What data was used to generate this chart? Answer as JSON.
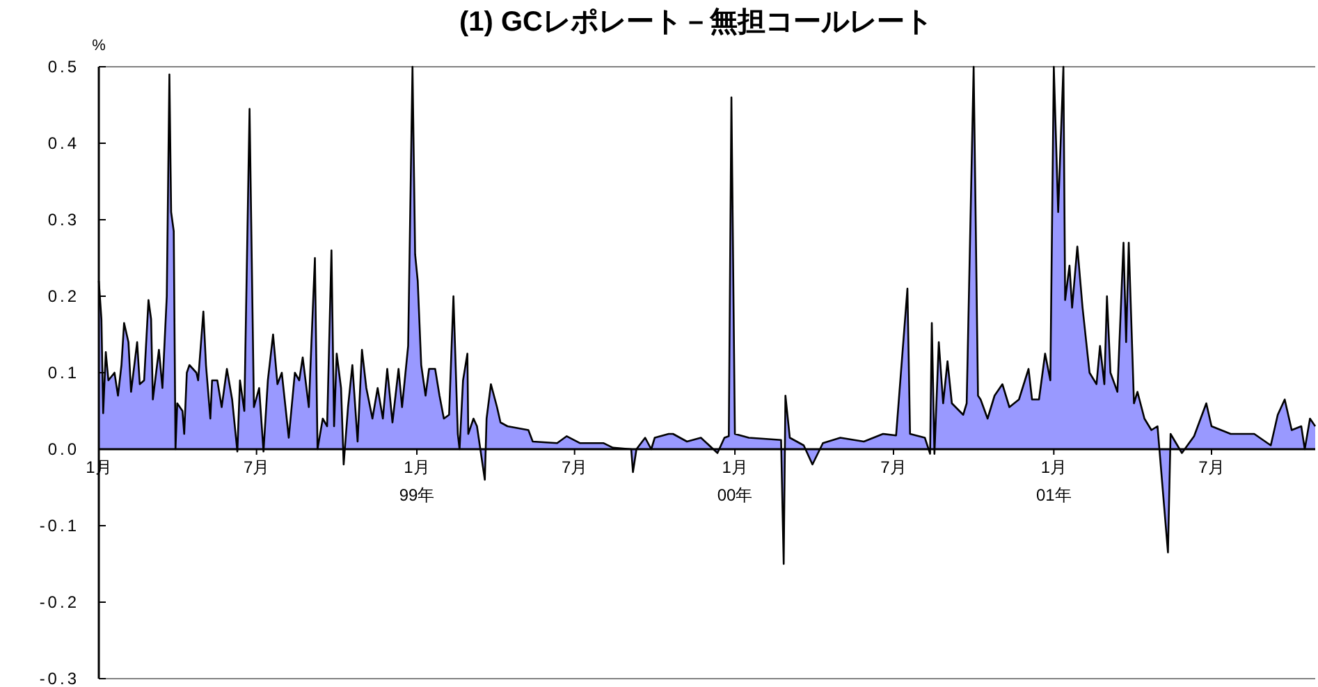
{
  "chart_data": {
    "type": "area",
    "title": "(1) GCレポレート－無担コールレート",
    "ylabel": "%",
    "color": "#9999ff",
    "x": [
      "1998-01-01",
      "1998-01-04",
      "1998-01-06",
      "1998-01-09",
      "1998-01-12",
      "1998-01-19",
      "1998-01-23",
      "1998-01-27",
      "1998-01-30",
      "1998-02-04",
      "1998-02-07",
      "1998-02-14",
      "1998-02-17",
      "1998-02-22",
      "1998-02-27",
      "1998-03-02",
      "1998-03-04",
      "1998-03-11",
      "1998-03-15",
      "1998-03-20",
      "1998-03-23",
      "1998-03-25",
      "1998-03-28",
      "1998-03-30",
      "1998-04-01",
      "1998-04-07",
      "1998-04-09",
      "1998-04-12",
      "1998-04-15",
      "1998-04-23",
      "1998-04-25",
      "1998-05-01",
      "1998-05-04",
      "1998-05-09",
      "1998-05-11",
      "1998-05-17",
      "1998-05-22",
      "1998-05-28",
      "1998-06-03",
      "1998-06-09",
      "1998-06-12",
      "1998-06-17",
      "1998-06-23",
      "1998-06-28",
      "1998-07-04",
      "1998-07-09",
      "1998-07-14",
      "1998-07-20",
      "1998-07-25",
      "1998-07-30",
      "1998-08-07",
      "1998-08-14",
      "1998-08-19",
      "1998-08-23",
      "1998-08-30",
      "1998-09-06",
      "1998-09-09",
      "1998-09-15",
      "1998-09-20",
      "1998-09-25",
      "1998-09-28",
      "1998-10-01",
      "1998-10-06",
      "1998-10-09",
      "1998-10-14",
      "1998-10-19",
      "1998-10-25",
      "1998-10-30",
      "1998-11-04",
      "1998-11-11",
      "1998-11-17",
      "1998-11-23",
      "1998-11-28",
      "1998-12-04",
      "1998-12-11",
      "1998-12-15",
      "1998-12-22",
      "1998-12-27",
      "1998-12-30",
      "1999-01-02",
      "1999-01-06",
      "1999-01-11",
      "1999-01-15",
      "1999-01-22",
      "1999-01-27",
      "1999-02-01",
      "1999-02-07",
      "1999-02-12",
      "1999-02-17",
      "1999-02-19",
      "1999-02-23",
      "1999-02-28",
      "1999-03-01",
      "1999-03-07",
      "1999-03-11",
      "1999-03-20",
      "1999-03-22",
      "1999-03-27",
      "1999-04-03",
      "1999-04-07",
      "1999-04-15",
      "1999-05-09",
      "1999-05-14",
      "1999-06-11",
      "1999-06-22",
      "1999-07-07",
      "1999-08-03",
      "1999-08-14",
      "1999-09-04",
      "1999-09-06",
      "1999-09-10",
      "1999-09-20",
      "1999-09-27",
      "1999-10-01",
      "1999-10-17",
      "1999-10-22",
      "1999-11-07",
      "1999-11-23",
      "1999-12-12",
      "1999-12-20",
      "1999-12-25",
      "1999-12-28",
      "2000-01-01",
      "2000-01-17",
      "2000-02-23",
      "2000-02-26",
      "2000-02-28",
      "2000-03-04",
      "2000-03-20",
      "2000-03-30",
      "2000-04-11",
      "2000-05-01",
      "2000-05-28",
      "2000-06-19",
      "2000-07-04",
      "2000-07-17",
      "2000-07-20",
      "2000-08-06",
      "2000-08-12",
      "2000-08-14",
      "2000-08-17",
      "2000-08-22",
      "2000-08-27",
      "2000-09-01",
      "2000-09-06",
      "2000-09-19",
      "2000-09-23",
      "2000-10-01",
      "2000-10-06",
      "2000-10-09",
      "2000-10-17",
      "2000-10-25",
      "2000-11-03",
      "2000-11-11",
      "2000-11-22",
      "2000-12-03",
      "2000-12-07",
      "2000-12-15",
      "2000-12-22",
      "2000-12-28",
      "2001-01-01",
      "2001-01-06",
      "2001-01-12",
      "2001-01-14",
      "2001-01-19",
      "2001-01-22",
      "2001-01-28",
      "2001-02-03",
      "2001-02-11",
      "2001-02-19",
      "2001-02-23",
      "2001-02-28",
      "2001-03-03",
      "2001-03-07",
      "2001-03-15",
      "2001-03-22",
      "2001-03-25",
      "2001-03-28",
      "2001-04-03",
      "2001-04-07",
      "2001-04-15",
      "2001-04-23",
      "2001-04-30",
      "2001-05-12",
      "2001-05-15",
      "2001-05-28",
      "2001-06-11",
      "2001-06-25",
      "2001-07-01",
      "2001-07-23",
      "2001-08-19",
      "2001-09-07",
      "2001-09-15",
      "2001-09-23",
      "2001-10-01",
      "2001-10-12",
      "2001-10-16",
      "2001-10-22",
      "2001-10-28"
    ],
    "values": [
      0.22,
      0.17,
      0.047,
      0.127,
      0.09,
      0.1,
      0.07,
      0.11,
      0.165,
      0.14,
      0.075,
      0.14,
      0.085,
      0.09,
      0.195,
      0.17,
      0.065,
      0.13,
      0.08,
      0.2,
      0.49,
      0.31,
      0.285,
      0.0,
      0.06,
      0.05,
      0.02,
      0.1,
      0.11,
      0.1,
      0.09,
      0.18,
      0.11,
      0.04,
      0.09,
      0.09,
      0.055,
      0.105,
      0.065,
      -0.003,
      0.09,
      0.05,
      0.445,
      0.055,
      0.08,
      -0.003,
      0.09,
      0.15,
      0.085,
      0.1,
      0.015,
      0.1,
      0.09,
      0.12,
      0.055,
      0.25,
      0.0,
      0.04,
      0.03,
      0.26,
      0.03,
      0.125,
      0.08,
      -0.02,
      0.055,
      0.11,
      0.01,
      0.13,
      0.08,
      0.04,
      0.08,
      0.04,
      0.105,
      0.035,
      0.105,
      0.055,
      0.135,
      0.5,
      0.255,
      0.22,
      0.11,
      0.07,
      0.105,
      0.105,
      0.07,
      0.04,
      0.045,
      0.2,
      0.02,
      0.0,
      0.09,
      0.125,
      0.02,
      0.04,
      0.03,
      -0.04,
      0.04,
      0.085,
      0.055,
      0.035,
      0.03,
      0.025,
      0.01,
      0.008,
      0.017,
      0.008,
      0.008,
      0.002,
      0.0,
      -0.03,
      0.0,
      0.015,
      0.0,
      0.015,
      0.02,
      0.02,
      0.01,
      0.015,
      -0.005,
      0.015,
      0.017,
      0.46,
      0.02,
      0.015,
      0.012,
      -0.15,
      0.07,
      0.015,
      0.005,
      -0.02,
      0.008,
      0.015,
      0.01,
      0.02,
      0.018,
      0.21,
      0.02,
      0.015,
      -0.006,
      0.165,
      -0.006,
      0.14,
      0.06,
      0.115,
      0.06,
      0.045,
      0.06,
      0.5,
      0.07,
      0.065,
      0.04,
      0.07,
      0.085,
      0.055,
      0.065,
      0.105,
      0.065,
      0.065,
      0.125,
      0.09,
      0.5,
      0.31,
      0.5,
      0.195,
      0.24,
      0.185,
      0.265,
      0.185,
      0.1,
      0.085,
      0.135,
      0.085,
      0.2,
      0.1,
      0.075,
      0.27,
      0.14,
      0.27,
      0.06,
      0.075,
      0.04,
      0.025,
      0.03,
      -0.135,
      0.02,
      -0.005,
      0.017,
      0.06,
      0.03,
      0.02,
      0.02,
      0.005,
      0.045,
      0.065,
      0.025,
      0.03,
      0.0,
      0.04,
      0.03
    ],
    "xlim": [
      "1998-01-01",
      "2001-10-28"
    ],
    "xticks": [
      {
        "value": "1998-01-01",
        "label": "1月"
      },
      {
        "value": "1998-07-01",
        "label": "7月"
      },
      {
        "value": "1999-01-01",
        "label": "1月\n99年"
      },
      {
        "value": "1999-07-01",
        "label": "7月"
      },
      {
        "value": "2000-01-01",
        "label": "1月\n00年"
      },
      {
        "value": "2000-07-01",
        "label": "7月"
      },
      {
        "value": "2001-01-01",
        "label": "1月\n01年"
      },
      {
        "value": "2001-07-01",
        "label": "7月"
      }
    ],
    "ylim": [
      -0.3,
      0.5
    ],
    "yticks": [
      {
        "value": 0.5,
        "label": "0.5"
      },
      {
        "value": 0.4,
        "label": "0.4"
      },
      {
        "value": 0.3,
        "label": "0.3"
      },
      {
        "value": 0.2,
        "label": "0.2"
      },
      {
        "value": 0.1,
        "label": "0.1"
      },
      {
        "value": 0.0,
        "label": "0.0"
      },
      {
        "value": -0.1,
        "label": "-0.1"
      },
      {
        "value": -0.2,
        "label": "-0.2"
      },
      {
        "value": -0.3,
        "label": "-0.3"
      }
    ]
  }
}
